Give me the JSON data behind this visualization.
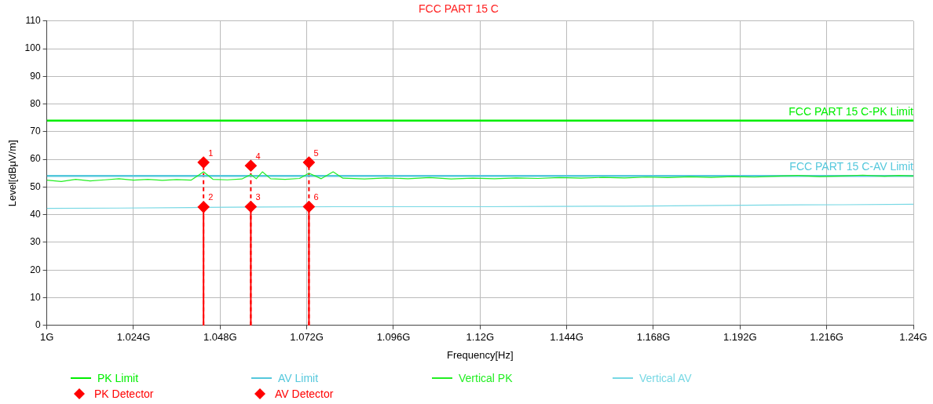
{
  "chart_data": {
    "type": "line",
    "title": "FCC PART 15 C",
    "xlabel": "Frequency[Hz]",
    "ylabel": "Level[dBμV/m]",
    "xlim": [
      1,
      1.24
    ],
    "xticks": [
      {
        "value": 1,
        "label": "1G"
      },
      {
        "value": 1.024,
        "label": "1.024G"
      },
      {
        "value": 1.048,
        "label": "1.048G"
      },
      {
        "value": 1.072,
        "label": "1.072G"
      },
      {
        "value": 1.096,
        "label": "1.096G"
      },
      {
        "value": 1.12,
        "label": "1.12G"
      },
      {
        "value": 1.144,
        "label": "1.144G"
      },
      {
        "value": 1.168,
        "label": "1.168G"
      },
      {
        "value": 1.192,
        "label": "1.192G"
      },
      {
        "value": 1.216,
        "label": "1.216G"
      },
      {
        "value": 1.24,
        "label": "1.24G"
      }
    ],
    "ylim": [
      0,
      110
    ],
    "yticks": [
      0,
      10,
      20,
      30,
      40,
      50,
      60,
      70,
      80,
      90,
      100,
      110
    ],
    "grid": true,
    "legend": "bottom",
    "annotations": [
      {
        "text": "FCC PART 15 C-PK Limit",
        "x": 1.24,
        "y": 74
      },
      {
        "text": "FCC PART 15 C-AV Limit",
        "x": 1.24,
        "y": 54
      },
      {
        "text": "1",
        "x": 1.0434,
        "y": 58.9
      },
      {
        "text": "4",
        "x": 1.0565,
        "y": 57.7
      },
      {
        "text": "5",
        "x": 1.0726,
        "y": 58.9
      },
      {
        "text": "2",
        "x": 1.0434,
        "y": 42.8
      },
      {
        "text": "3",
        "x": 1.0565,
        "y": 42.9
      },
      {
        "text": "6",
        "x": 1.0726,
        "y": 42.9
      }
    ],
    "series": [
      {
        "name": "PK Limit",
        "color": "#00ee00",
        "x": [
          1,
          1.24
        ],
        "values": [
          74,
          74
        ]
      },
      {
        "name": "AV Limit",
        "color": "#55c8dc",
        "x": [
          1,
          1.24
        ],
        "values": [
          54,
          54
        ]
      },
      {
        "name": "Vertical PK",
        "color": "#22ee22",
        "x": [
          1,
          1.004,
          1.008,
          1.012,
          1.016,
          1.02,
          1.024,
          1.028,
          1.032,
          1.036,
          1.04,
          1.0434,
          1.046,
          1.05,
          1.054,
          1.0565,
          1.058,
          1.0597,
          1.062,
          1.066,
          1.07,
          1.0726,
          1.076,
          1.0793,
          1.082,
          1.088,
          1.094,
          1.1,
          1.106,
          1.112,
          1.118,
          1.124,
          1.13,
          1.136,
          1.142,
          1.148,
          1.154,
          1.16,
          1.166,
          1.172,
          1.178,
          1.184,
          1.19,
          1.196,
          1.202,
          1.208,
          1.214,
          1.22,
          1.226,
          1.232,
          1.236,
          1.24
        ],
        "values": [
          52.5,
          52,
          52.8,
          52.2,
          52.6,
          53,
          52.5,
          52.8,
          52.4,
          52.7,
          52.5,
          55.5,
          52.8,
          52.6,
          52.9,
          54.5,
          53,
          55.5,
          53,
          52.8,
          53.1,
          55,
          53,
          55.5,
          53.2,
          52.9,
          53.3,
          53,
          53.4,
          52.9,
          53.2,
          53,
          53.3,
          53.1,
          53.4,
          53.2,
          53.5,
          53.3,
          53.6,
          53.4,
          53.7,
          53.5,
          53.8,
          53.6,
          53.9,
          54.2,
          53.8,
          54,
          54.3,
          53.9,
          54.2,
          54
        ]
      },
      {
        "name": "Vertical AV",
        "color": "#77d8e4",
        "x": [
          1,
          1.02,
          1.04,
          1.06,
          1.08,
          1.1,
          1.12,
          1.14,
          1.16,
          1.18,
          1.2,
          1.22,
          1.24
        ],
        "values": [
          42.3,
          42.4,
          42.6,
          42.8,
          42.9,
          42.9,
          42.9,
          43,
          43.1,
          43.3,
          43.5,
          43.6,
          43.8
        ]
      },
      {
        "name": "PK Detector",
        "type": "scatter",
        "marker": "diamond",
        "line_style": "dashed",
        "color": "#ff0000",
        "x": [
          1.0434,
          1.0565,
          1.0726
        ],
        "values": [
          58.9,
          57.7,
          58.9
        ]
      },
      {
        "name": "AV Detector",
        "type": "scatter",
        "marker": "diamond",
        "line_style": "solid",
        "color": "#ff0000",
        "x": [
          1.0434,
          1.0565,
          1.0726
        ],
        "values": [
          42.8,
          42.9,
          42.9
        ]
      }
    ]
  }
}
